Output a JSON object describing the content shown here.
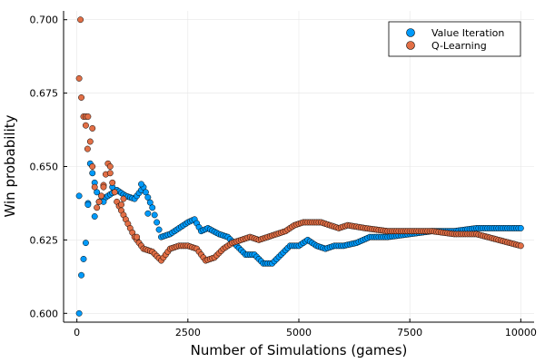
{
  "chart_data": {
    "type": "scatter",
    "title": "",
    "xlabel": "Number of Simulations (games)",
    "ylabel": "Win probability",
    "xlim": [
      -300,
      10300
    ],
    "ylim": [
      0.597,
      0.703
    ],
    "x_ticks": [
      0,
      2500,
      5000,
      7500,
      10000
    ],
    "x_tick_labels": [
      "0",
      "2500",
      "5000",
      "7500",
      "10000"
    ],
    "y_ticks": [
      0.6,
      0.625,
      0.65,
      0.675,
      0.7
    ],
    "y_tick_labels": [
      "0.600",
      "0.625",
      "0.650",
      "0.675",
      "0.700"
    ],
    "grid": true,
    "legend_position": "top-right",
    "series": [
      {
        "name": "Value Iteration",
        "color": "#009AFA",
        "knots": [
          [
            50,
            0.64
          ],
          [
            100,
            0.613
          ],
          [
            200,
            0.624
          ],
          [
            300,
            0.651
          ],
          [
            500,
            0.638
          ],
          [
            700,
            0.64
          ],
          [
            900,
            0.642
          ],
          [
            1100,
            0.64
          ],
          [
            1300,
            0.639
          ],
          [
            1500,
            0.643
          ],
          [
            1700,
            0.636
          ],
          [
            1900,
            0.626
          ],
          [
            2100,
            0.627
          ],
          [
            2300,
            0.629
          ],
          [
            2500,
            0.631
          ],
          [
            2650,
            0.632
          ],
          [
            2800,
            0.628
          ],
          [
            2950,
            0.629
          ],
          [
            3200,
            0.627
          ],
          [
            3400,
            0.626
          ],
          [
            3600,
            0.623
          ],
          [
            3800,
            0.62
          ],
          [
            4000,
            0.62
          ],
          [
            4200,
            0.617
          ],
          [
            4400,
            0.617
          ],
          [
            4600,
            0.62
          ],
          [
            4800,
            0.623
          ],
          [
            5000,
            0.623
          ],
          [
            5200,
            0.625
          ],
          [
            5400,
            0.623
          ],
          [
            5600,
            0.622
          ],
          [
            5800,
            0.623
          ],
          [
            6000,
            0.623
          ],
          [
            6300,
            0.624
          ],
          [
            6600,
            0.626
          ],
          [
            7000,
            0.626
          ],
          [
            7500,
            0.627
          ],
          [
            8000,
            0.628
          ],
          [
            8500,
            0.628
          ],
          [
            9000,
            0.629
          ],
          [
            9500,
            0.629
          ],
          [
            10000,
            0.629
          ]
        ],
        "extra_points": [
          [
            50,
            0.6
          ],
          [
            250,
            0.637
          ],
          [
            400,
            0.633
          ],
          [
            600,
            0.638
          ],
          [
            800,
            0.643
          ],
          [
            1450,
            0.644
          ],
          [
            1600,
            0.634
          ]
        ]
      },
      {
        "name": "Q-Learning",
        "color": "#E26F46",
        "knots": [
          [
            50,
            0.68
          ],
          [
            150,
            0.667
          ],
          [
            250,
            0.667
          ],
          [
            350,
            0.65
          ],
          [
            450,
            0.636
          ],
          [
            550,
            0.64
          ],
          [
            700,
            0.651
          ],
          [
            900,
            0.638
          ],
          [
            1100,
            0.632
          ],
          [
            1300,
            0.626
          ],
          [
            1500,
            0.622
          ],
          [
            1700,
            0.621
          ],
          [
            1900,
            0.618
          ],
          [
            2100,
            0.622
          ],
          [
            2300,
            0.623
          ],
          [
            2500,
            0.623
          ],
          [
            2700,
            0.622
          ],
          [
            2900,
            0.618
          ],
          [
            3100,
            0.619
          ],
          [
            3300,
            0.622
          ],
          [
            3500,
            0.624
          ],
          [
            3700,
            0.625
          ],
          [
            3900,
            0.626
          ],
          [
            4100,
            0.625
          ],
          [
            4300,
            0.626
          ],
          [
            4500,
            0.627
          ],
          [
            4700,
            0.628
          ],
          [
            4900,
            0.63
          ],
          [
            5100,
            0.631
          ],
          [
            5300,
            0.631
          ],
          [
            5500,
            0.631
          ],
          [
            5700,
            0.63
          ],
          [
            5900,
            0.629
          ],
          [
            6100,
            0.63
          ],
          [
            6500,
            0.629
          ],
          [
            7000,
            0.628
          ],
          [
            7500,
            0.628
          ],
          [
            8000,
            0.628
          ],
          [
            8500,
            0.627
          ],
          [
            9000,
            0.627
          ],
          [
            9500,
            0.625
          ],
          [
            10000,
            0.623
          ]
        ],
        "extra_points": [
          [
            80,
            0.7
          ],
          [
            200,
            0.664
          ],
          [
            240,
            0.656
          ],
          [
            350,
            0.663
          ],
          [
            600,
            0.643
          ],
          [
            750,
            0.65
          ],
          [
            1000,
            0.637
          ],
          [
            1050,
            0.639
          ],
          [
            1350,
            0.626
          ]
        ]
      }
    ]
  }
}
